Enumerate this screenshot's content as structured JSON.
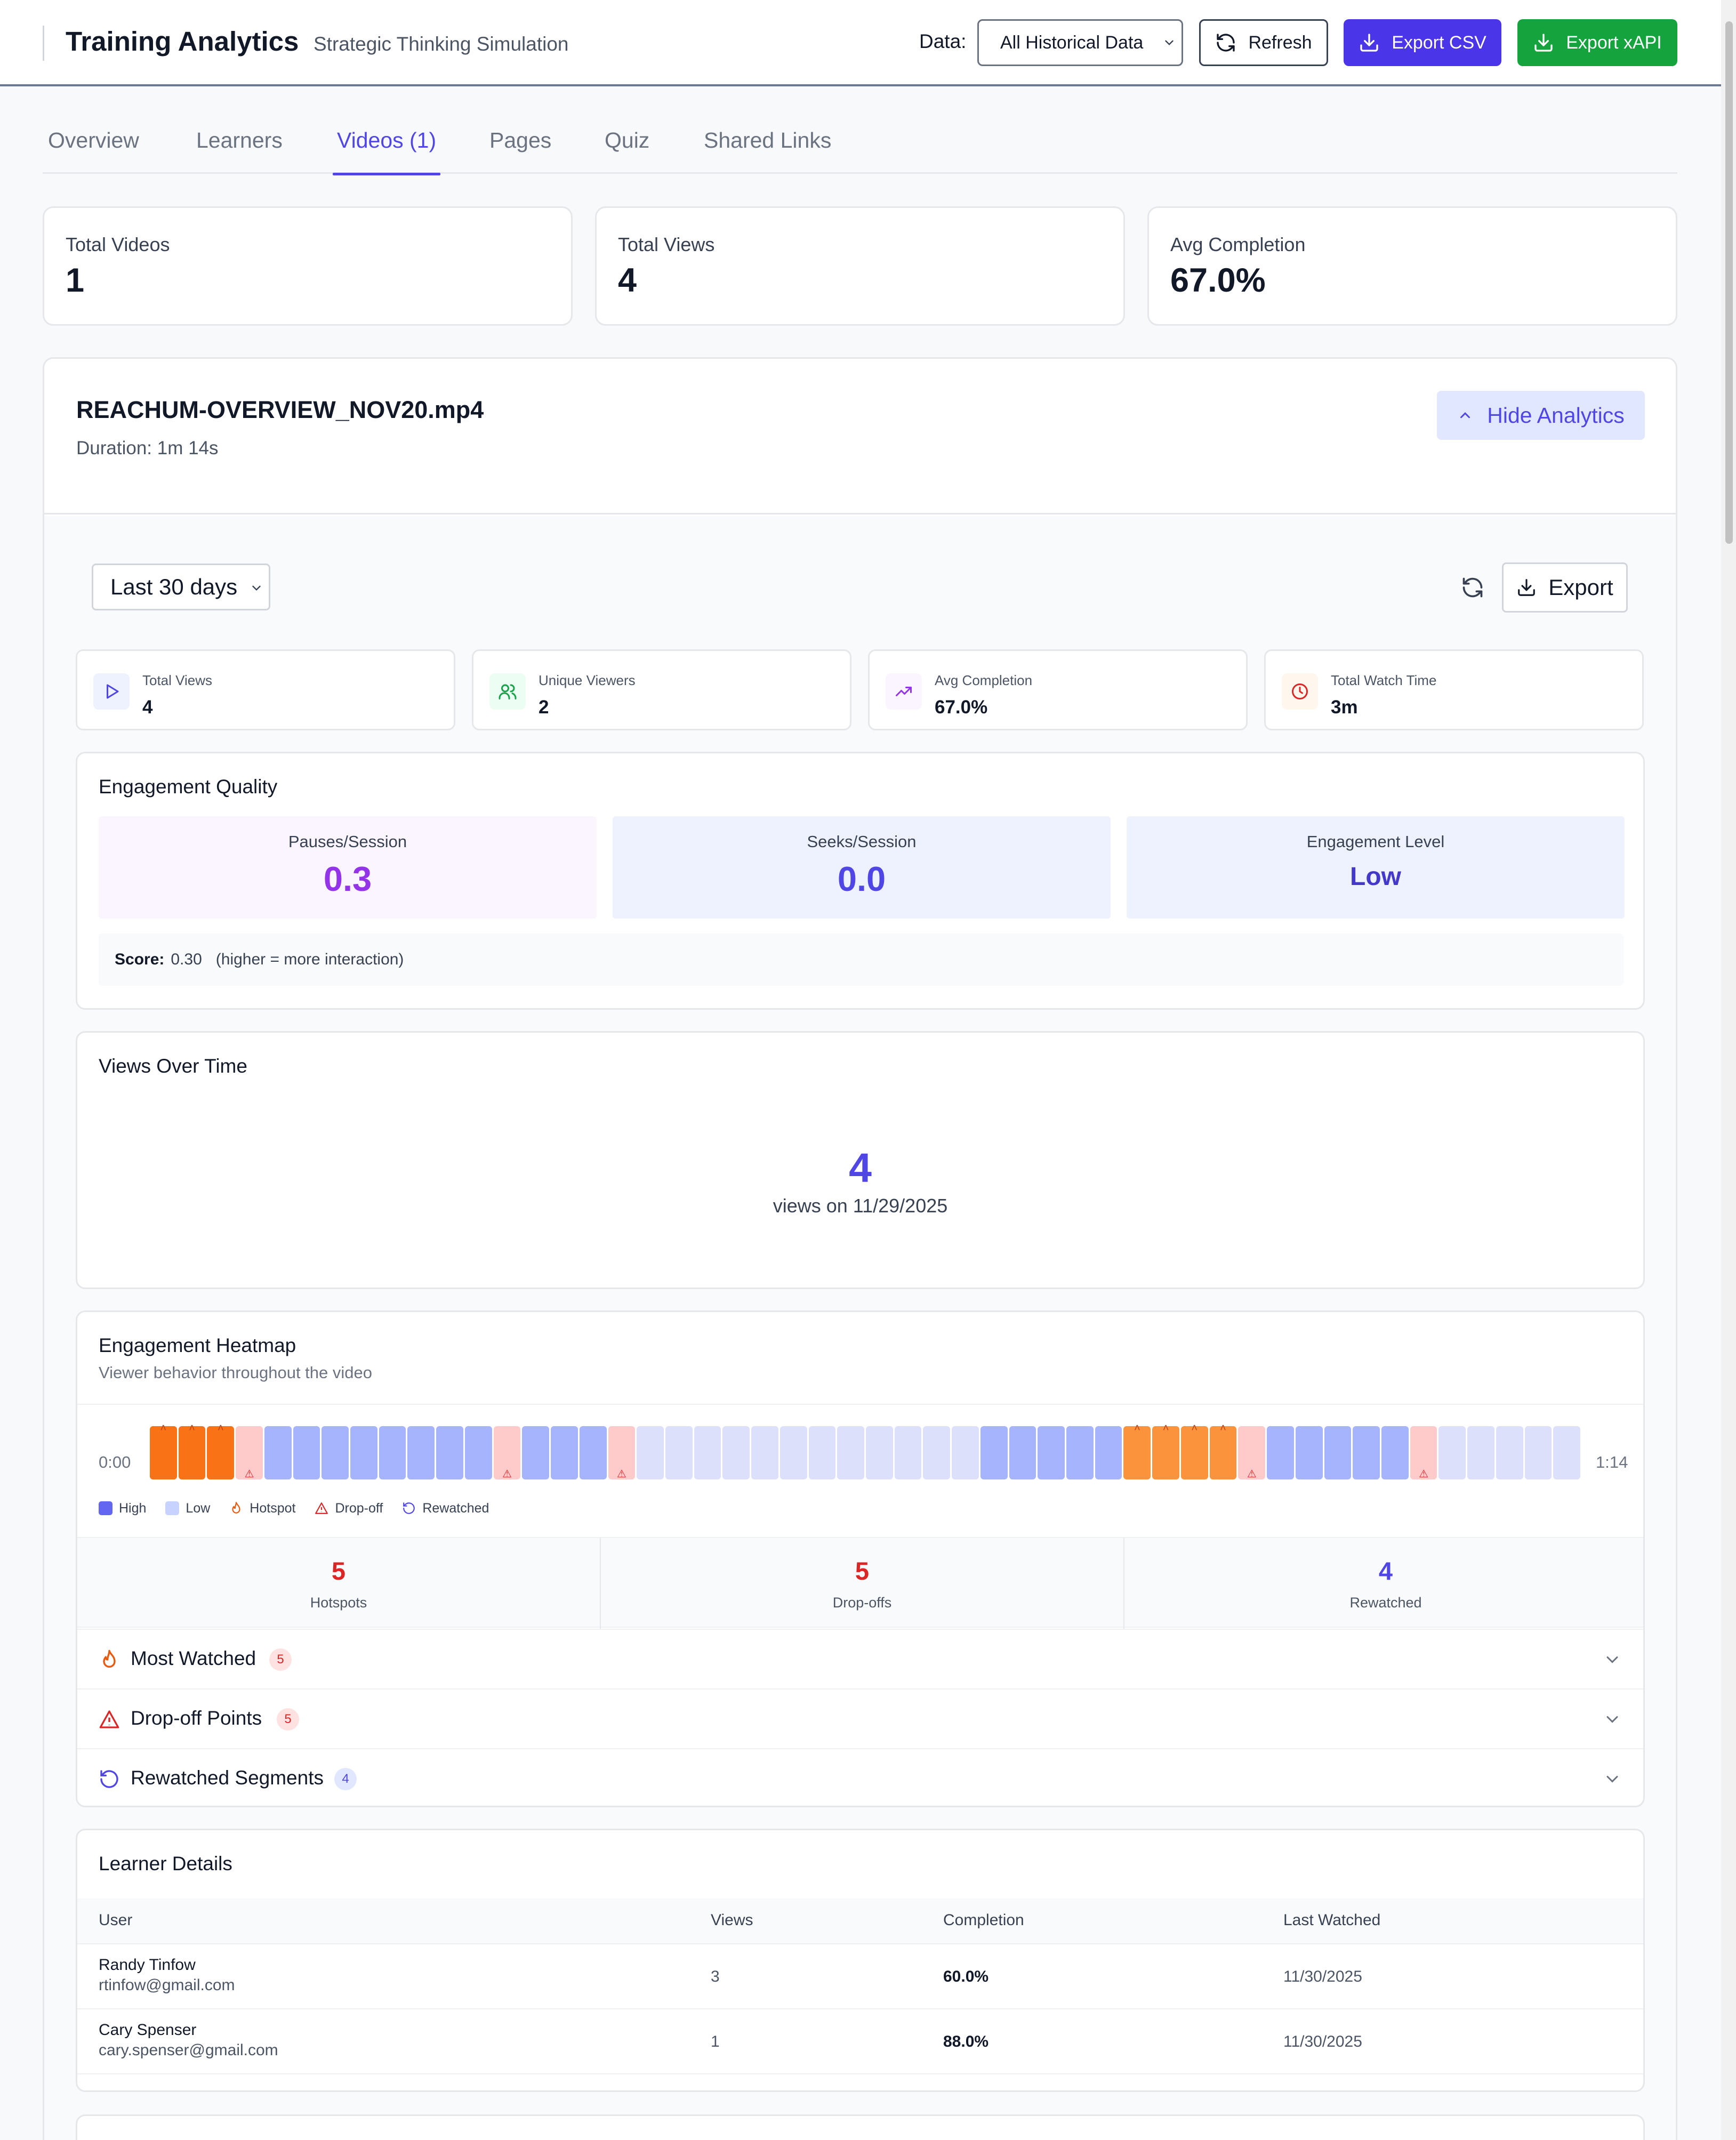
{
  "header": {
    "title": "Training Analytics",
    "subtitle": "Strategic Thinking Simulation",
    "data_label": "Data:",
    "data_select": "All Historical Data",
    "refresh": "Refresh",
    "export_csv": "Export CSV",
    "export_xapi": "Export xAPI"
  },
  "tabs": [
    "Overview",
    "Learners",
    "Videos (1)",
    "Pages",
    "Quiz",
    "Shared Links"
  ],
  "active_tab": "Videos (1)",
  "summary": [
    {
      "label": "Total Videos",
      "value": "1"
    },
    {
      "label": "Total Views",
      "value": "4"
    },
    {
      "label": "Avg Completion",
      "value": "67.0%"
    }
  ],
  "video": {
    "name": "REACHUM-OVERVIEW_NOV20.mp4",
    "duration": "Duration: 1m 14s",
    "hide_label": "Hide Analytics",
    "range": "Last 30 days",
    "export": "Export",
    "mini_stats": [
      {
        "label": "Total Views",
        "value": "4",
        "icon": "play-icon"
      },
      {
        "label": "Unique Viewers",
        "value": "2",
        "icon": "users-icon"
      },
      {
        "label": "Avg Completion",
        "value": "67.0%",
        "icon": "trending-up-icon"
      },
      {
        "label": "Total Watch Time",
        "value": "3m",
        "icon": "clock-icon"
      }
    ],
    "engagement": {
      "title": "Engagement Quality",
      "pauses_label": "Pauses/Session",
      "pauses_value": "0.3",
      "seeks_label": "Seeks/Session",
      "seeks_value": "0.0",
      "level_label": "Engagement Level",
      "level_value": "Low",
      "score_label": "Score:",
      "score_value": "0.30",
      "score_note": "(higher = more interaction)"
    },
    "views_over_time": {
      "title": "Views Over Time",
      "count": "4",
      "caption": "views on 11/29/2025"
    },
    "heatmap": {
      "title": "Engagement Heatmap",
      "subtitle": "Viewer behavior throughout the video",
      "start": "0:00",
      "end": "1:14",
      "cells": [
        "hot",
        "hot",
        "hot",
        "drop",
        "high",
        "high",
        "high",
        "high",
        "high",
        "high",
        "high",
        "high",
        "drop",
        "high",
        "high",
        "high",
        "drop",
        "low",
        "low",
        "low",
        "low",
        "low",
        "low",
        "low",
        "low",
        "low",
        "low",
        "low",
        "low",
        "high",
        "high",
        "high",
        "high",
        "high",
        "warm",
        "warm",
        "warm",
        "warm",
        "drop",
        "high",
        "high",
        "high",
        "high",
        "high",
        "drop",
        "low",
        "low",
        "low",
        "low",
        "low"
      ],
      "legend": {
        "high": "High",
        "low": "Low",
        "hotspot": "Hotspot",
        "dropoff": "Drop-off",
        "rewatched": "Rewatched"
      },
      "stats": [
        {
          "value": "5",
          "label": "Hotspots",
          "color": "#dc2626"
        },
        {
          "value": "5",
          "label": "Drop-offs",
          "color": "#dc2626"
        },
        {
          "value": "4",
          "label": "Rewatched",
          "color": "#4f46e5"
        }
      ],
      "accordions": [
        {
          "title": "Most Watched",
          "count": "5"
        },
        {
          "title": "Drop-off Points",
          "count": "5"
        },
        {
          "title": "Rewatched Segments",
          "count": "4"
        }
      ]
    },
    "learners": {
      "title": "Learner Details",
      "columns": [
        "User",
        "Views",
        "Completion",
        "Last Watched"
      ],
      "rows": [
        {
          "name": "Randy Tinfow",
          "email": "rtinfow@gmail.com",
          "views": "3",
          "completion": "60.0%",
          "last": "11/30/2025"
        },
        {
          "name": "Cary Spenser",
          "email": "cary.spenser@gmail.com",
          "views": "1",
          "completion": "88.0%",
          "last": "11/30/2025"
        }
      ]
    }
  },
  "colors": {
    "accent": "#4f46e5",
    "csv_button": "#4a35e8",
    "xapi_button": "#14a33d",
    "hot": "#f97316",
    "warm": "#fb923c",
    "drop": "#fecaca",
    "high": "#a5b4fc",
    "low": "#dde0fb"
  }
}
